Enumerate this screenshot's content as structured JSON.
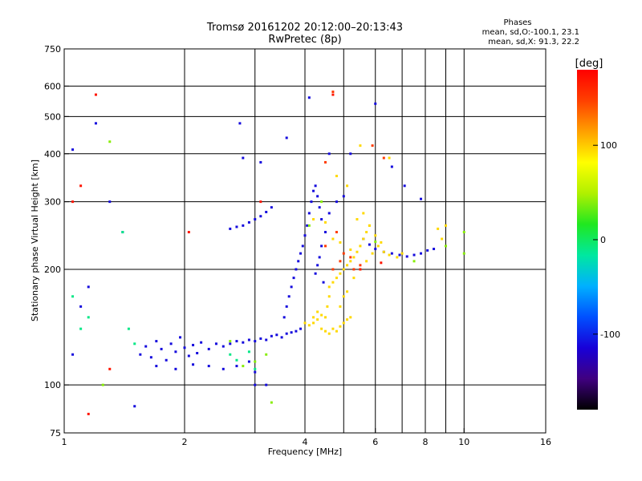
{
  "chart_data": {
    "type": "scatter",
    "title": "Tromsø 20161202 20:12:00–20:13:43",
    "subtitle": "RwPretec (8p)",
    "xlabel": "Frequency [MHz]",
    "ylabel": "Stationary phase Virtual Height [km]",
    "xscale": "log",
    "yscale": "log",
    "xlim": [
      1,
      16
    ],
    "ylim": [
      75,
      750
    ],
    "xticks": [
      1,
      2,
      4,
      6,
      8,
      10,
      16
    ],
    "xtick_labels": [
      "1",
      "2",
      "4",
      "6",
      "8",
      "10",
      "16"
    ],
    "xgrid": [
      2,
      3,
      4,
      5,
      6,
      7,
      8,
      9,
      10
    ],
    "yticks": [
      75,
      100,
      200,
      300,
      400,
      500,
      600,
      750
    ],
    "ytick_labels": [
      "75",
      "100",
      "200",
      "300",
      "400",
      "500",
      "600",
      "750"
    ],
    "ygrid": [
      100,
      200,
      300,
      400,
      500,
      600
    ],
    "grid": true,
    "legend": {
      "title": "Phases",
      "lines": [
        "mean, sd,O:-100.1, 23.1",
        "mean, sd,X:  91.3, 22.2"
      ],
      "placement": "top-right"
    },
    "colorbar": {
      "label": "[deg]",
      "ticks": [
        100,
        0,
        -100
      ],
      "tick_labels": [
        "100",
        "0",
        "-100"
      ],
      "range": [
        -180,
        180
      ],
      "colormap": "rainbow",
      "colors": [
        "#000000",
        "#400080",
        "#1800d8",
        "#0050ff",
        "#00b0ff",
        "#00e8a0",
        "#20e820",
        "#b0f000",
        "#ffff00",
        "#ffa000",
        "#ff4000",
        "#ff0000"
      ]
    },
    "series": [
      {
        "points": [
          [
            1.55,
            120
          ],
          [
            1.6,
            126
          ],
          [
            1.65,
            118
          ],
          [
            1.7,
            130
          ],
          [
            1.75,
            124
          ],
          [
            1.8,
            116
          ],
          [
            1.85,
            128
          ],
          [
            1.9,
            122
          ],
          [
            1.95,
            133
          ],
          [
            2.0,
            125
          ],
          [
            2.05,
            119
          ],
          [
            2.1,
            127
          ],
          [
            2.15,
            121
          ],
          [
            2.2,
            129
          ],
          [
            2.3,
            124
          ],
          [
            2.4,
            128
          ],
          [
            2.5,
            126
          ],
          [
            2.6,
            128
          ],
          [
            2.7,
            130
          ],
          [
            2.8,
            129
          ],
          [
            2.9,
            131
          ],
          [
            3.0,
            130
          ],
          [
            3.1,
            132
          ],
          [
            3.2,
            131
          ],
          [
            3.3,
            134
          ],
          [
            3.4,
            135
          ],
          [
            3.5,
            133
          ],
          [
            3.6,
            136
          ],
          [
            3.7,
            137
          ],
          [
            3.8,
            138
          ],
          [
            3.9,
            140
          ],
          [
            3.55,
            150
          ],
          [
            3.6,
            160
          ],
          [
            3.65,
            170
          ],
          [
            3.7,
            180
          ],
          [
            3.75,
            190
          ],
          [
            3.8,
            200
          ],
          [
            3.85,
            210
          ],
          [
            3.9,
            220
          ],
          [
            3.95,
            230
          ],
          [
            4.0,
            245
          ],
          [
            4.05,
            260
          ],
          [
            4.1,
            280
          ],
          [
            4.15,
            300
          ],
          [
            4.2,
            320
          ],
          [
            4.25,
            330
          ],
          [
            4.3,
            310
          ],
          [
            4.35,
            290
          ],
          [
            4.4,
            270
          ],
          [
            2.6,
            255
          ],
          [
            2.7,
            258
          ],
          [
            2.8,
            260
          ],
          [
            2.9,
            265
          ],
          [
            3.0,
            270
          ],
          [
            3.1,
            275
          ],
          [
            3.2,
            282
          ],
          [
            3.3,
            290
          ],
          [
            4.8,
            300
          ],
          [
            5.0,
            310
          ],
          [
            4.6,
            280
          ],
          [
            4.5,
            250
          ],
          [
            4.4,
            230
          ],
          [
            4.35,
            215
          ],
          [
            4.3,
            205
          ],
          [
            4.25,
            195
          ],
          [
            4.45,
            185
          ],
          [
            2.3,
            112
          ],
          [
            2.5,
            110
          ],
          [
            2.7,
            112
          ],
          [
            2.9,
            115
          ],
          [
            3.0,
            108
          ],
          [
            1.7,
            112
          ],
          [
            1.9,
            110
          ],
          [
            2.1,
            113
          ],
          [
            5.6,
            240
          ],
          [
            5.8,
            232
          ],
          [
            6.0,
            226
          ],
          [
            6.3,
            222
          ],
          [
            6.6,
            220
          ],
          [
            6.9,
            218
          ],
          [
            7.2,
            216
          ],
          [
            7.5,
            218
          ],
          [
            7.8,
            220
          ],
          [
            8.1,
            224
          ],
          [
            8.4,
            226
          ],
          [
            1.05,
            410
          ],
          [
            1.2,
            480
          ],
          [
            2.75,
            480
          ],
          [
            2.8,
            390
          ],
          [
            3.1,
            380
          ],
          [
            3.6,
            440
          ],
          [
            4.1,
            560
          ],
          [
            4.6,
            400
          ],
          [
            5.2,
            400
          ],
          [
            6.0,
            540
          ],
          [
            6.6,
            370
          ],
          [
            7.1,
            330
          ],
          [
            7.8,
            305
          ],
          [
            1.05,
            120
          ],
          [
            1.1,
            160
          ],
          [
            1.15,
            180
          ],
          [
            3.0,
            100
          ],
          [
            3.2,
            100
          ],
          [
            1.5,
            88
          ],
          [
            1.3,
            300
          ],
          [
            1.4,
            250
          ]
        ],
        "phase": -110
      },
      {
        "points": [
          [
            4.6,
            180
          ],
          [
            4.7,
            185
          ],
          [
            4.8,
            190
          ],
          [
            4.9,
            195
          ],
          [
            5.0,
            200
          ],
          [
            5.1,
            205
          ],
          [
            5.2,
            210
          ],
          [
            5.3,
            215
          ],
          [
            5.4,
            222
          ],
          [
            5.5,
            230
          ],
          [
            5.6,
            240
          ],
          [
            5.7,
            250
          ],
          [
            5.8,
            260
          ],
          [
            4.2,
            150
          ],
          [
            4.3,
            148
          ],
          [
            4.4,
            152
          ],
          [
            4.5,
            150
          ],
          [
            4.55,
            160
          ],
          [
            4.6,
            170
          ],
          [
            4.7,
            140
          ],
          [
            4.8,
            138
          ],
          [
            4.9,
            142
          ],
          [
            5.0,
            145
          ],
          [
            5.1,
            148
          ],
          [
            5.2,
            150
          ],
          [
            4.4,
            140
          ],
          [
            4.5,
            138
          ],
          [
            4.6,
            136
          ],
          [
            4.3,
            155
          ],
          [
            4.2,
            145
          ],
          [
            4.1,
            143
          ],
          [
            4.0,
            145
          ],
          [
            4.9,
            160
          ],
          [
            5.0,
            170
          ],
          [
            5.1,
            175
          ],
          [
            5.3,
            190
          ],
          [
            5.5,
            200
          ],
          [
            5.7,
            210
          ],
          [
            5.9,
            220
          ],
          [
            6.1,
            230
          ],
          [
            6.3,
            222
          ],
          [
            6.5,
            218
          ],
          [
            6.8,
            215
          ],
          [
            7.0,
            220
          ],
          [
            5.4,
            270
          ],
          [
            5.6,
            280
          ],
          [
            5.8,
            260
          ],
          [
            6.0,
            245
          ],
          [
            6.2,
            235
          ],
          [
            6.5,
            390
          ],
          [
            5.5,
            420
          ],
          [
            4.8,
            350
          ],
          [
            5.1,
            330
          ],
          [
            4.2,
            270
          ],
          [
            4.5,
            265
          ],
          [
            4.7,
            240
          ],
          [
            4.9,
            235
          ],
          [
            5.2,
            225
          ],
          [
            8.6,
            255
          ],
          [
            9.0,
            260
          ],
          [
            8.8,
            240
          ]
        ],
        "phase": 95
      },
      {
        "points": [
          [
            5.0,
            220
          ],
          [
            5.2,
            215
          ],
          [
            5.3,
            200
          ],
          [
            5.5,
            205
          ],
          [
            4.9,
            210
          ],
          [
            4.7,
            200
          ],
          [
            4.5,
            380
          ],
          [
            4.7,
            580
          ],
          [
            5.9,
            420
          ],
          [
            6.3,
            390
          ],
          [
            4.5,
            230
          ],
          [
            4.8,
            250
          ]
        ],
        "phase": 150
      },
      {
        "points": [
          [
            1.2,
            570
          ],
          [
            1.05,
            300
          ],
          [
            1.1,
            330
          ],
          [
            1.3,
            110
          ],
          [
            1.15,
            84
          ],
          [
            2.05,
            250
          ],
          [
            3.1,
            300
          ],
          [
            5.5,
            200
          ],
          [
            6.2,
            208
          ],
          [
            4.7,
            570
          ]
        ],
        "phase": 170
      },
      {
        "points": [
          [
            1.3,
            430
          ],
          [
            1.25,
            100
          ],
          [
            2.6,
            130
          ],
          [
            2.8,
            112
          ],
          [
            3.0,
            115
          ],
          [
            3.2,
            120
          ],
          [
            3.3,
            90
          ],
          [
            4.1,
            260
          ],
          [
            4.4,
            300
          ],
          [
            6.0,
            236
          ],
          [
            7.5,
            210
          ],
          [
            9.0,
            230
          ],
          [
            10.0,
            220
          ],
          [
            10.0,
            250
          ]
        ],
        "phase": 40
      },
      {
        "points": [
          [
            1.05,
            170
          ],
          [
            1.1,
            140
          ],
          [
            1.15,
            150
          ],
          [
            1.4,
            250
          ],
          [
            1.45,
            140
          ],
          [
            1.5,
            128
          ],
          [
            2.6,
            120
          ],
          [
            2.7,
            116
          ],
          [
            2.9,
            122
          ],
          [
            3.0,
            110
          ]
        ],
        "phase": -10
      }
    ]
  }
}
